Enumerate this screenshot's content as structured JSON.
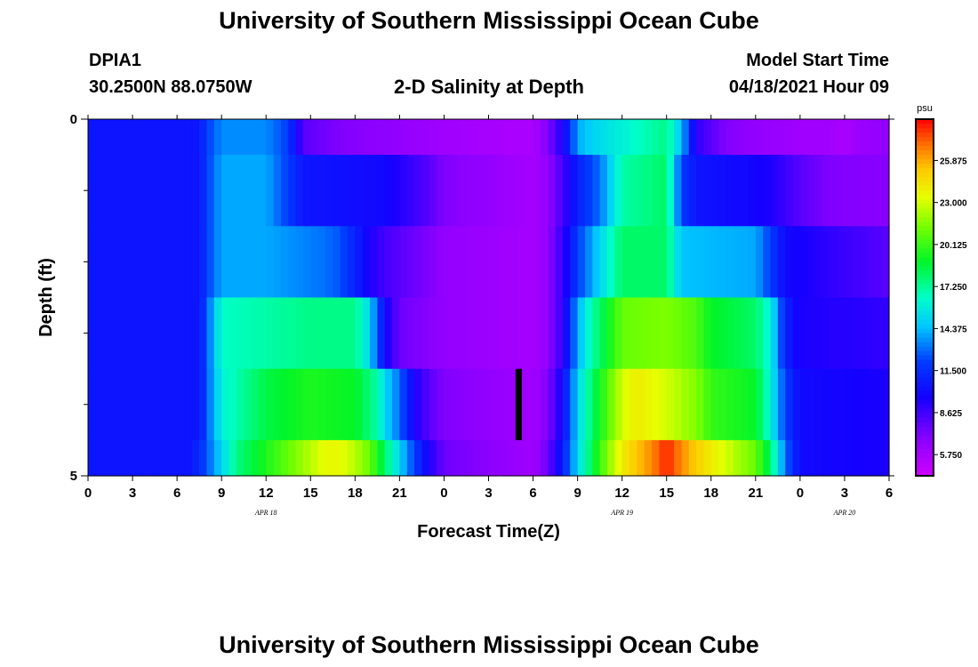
{
  "page": {
    "title_top": "University of Southern Mississippi Ocean Cube",
    "title_bottom": "University of Southern Mississippi Ocean Cube",
    "station_id": "DPIA1",
    "station_coords": "30.2500N  88.0750W",
    "plot_title": "2-D Salinity at Depth",
    "model_start_label": "Model Start Time",
    "model_start_value": "04/18/2021 Hour 09"
  },
  "colors": {
    "marker": "#000000"
  },
  "chart_data": {
    "type": "heatmap",
    "title": "2-D Salinity at Depth",
    "xlabel": "Forecast Time(Z)",
    "ylabel": "Depth (ft)",
    "colorbar_unit": "psu",
    "colorbar_ticks": [
      "25.875",
      "23.000",
      "20.125",
      "17.250",
      "14.375",
      "11.500",
      "8.625",
      "5.750"
    ],
    "color_range": [
      4.3,
      28.7
    ],
    "x_tick_labels": [
      "0",
      "3",
      "6",
      "9",
      "12",
      "15",
      "18",
      "21",
      "0",
      "3",
      "6",
      "9",
      "12",
      "15",
      "18",
      "21",
      "0",
      "3",
      "6"
    ],
    "x_range_hours": [
      0,
      54
    ],
    "date_labels": [
      {
        "text": "APR 18",
        "hour": 12
      },
      {
        "text": "APR 19",
        "hour": 36
      },
      {
        "text": "APR 20",
        "hour": 51
      }
    ],
    "y_tick_labels": [
      "0",
      "5"
    ],
    "y_range": [
      0,
      5
    ],
    "y_minor_ticks": [
      1,
      2,
      3,
      4
    ],
    "depth_bins": [
      0.5,
      1.5,
      2.5,
      3.5,
      4.5
    ],
    "grid": false,
    "marker_hour": 29,
    "marker_depth_range": [
      3.5,
      4.5
    ],
    "salinity_profiles": [
      {
        "depth": 0.5,
        "points": [
          [
            0,
            10.5
          ],
          [
            7.5,
            10.5
          ],
          [
            8,
            12
          ],
          [
            9,
            13.5
          ],
          [
            12,
            13.5
          ],
          [
            13.5,
            12
          ],
          [
            14.5,
            8
          ],
          [
            17,
            7
          ],
          [
            21,
            6.5
          ],
          [
            24,
            6
          ],
          [
            29,
            5.6
          ],
          [
            30,
            5.6
          ],
          [
            31,
            7
          ],
          [
            32,
            9.5
          ],
          [
            32.5,
            11.5
          ],
          [
            33,
            14
          ],
          [
            34,
            15
          ],
          [
            36,
            16
          ],
          [
            39,
            17.5
          ],
          [
            40,
            14.5
          ],
          [
            41,
            9
          ],
          [
            43,
            7
          ],
          [
            45,
            6.5
          ],
          [
            48,
            6
          ],
          [
            50,
            6
          ],
          [
            51,
            5.6
          ],
          [
            52,
            6.2
          ],
          [
            54,
            6.5
          ]
        ]
      },
      {
        "depth": 1.5,
        "points": [
          [
            0,
            10.5
          ],
          [
            7.5,
            10.5
          ],
          [
            8,
            12
          ],
          [
            9,
            14
          ],
          [
            12,
            14
          ],
          [
            13.5,
            12
          ],
          [
            14.5,
            10.5
          ],
          [
            20,
            10
          ],
          [
            23,
            8
          ],
          [
            24,
            7
          ],
          [
            30,
            5.8
          ],
          [
            31,
            6.5
          ],
          [
            32,
            8.5
          ],
          [
            33,
            11
          ],
          [
            34.5,
            13
          ],
          [
            36,
            17
          ],
          [
            39,
            18
          ],
          [
            40,
            12
          ],
          [
            41,
            10.5
          ],
          [
            44,
            10
          ],
          [
            46,
            9.5
          ],
          [
            48,
            8
          ],
          [
            50,
            7
          ],
          [
            54,
            6.8
          ]
        ]
      },
      {
        "depth": 2.5,
        "points": [
          [
            0,
            10.5
          ],
          [
            7.5,
            10.5
          ],
          [
            8,
            12
          ],
          [
            9,
            14
          ],
          [
            12,
            14
          ],
          [
            14,
            13.5
          ],
          [
            16,
            13
          ],
          [
            17,
            12.5
          ],
          [
            18,
            11
          ],
          [
            19,
            9.5
          ],
          [
            20,
            8.5
          ],
          [
            22,
            7.5
          ],
          [
            24,
            6.5
          ],
          [
            30,
            5.8
          ],
          [
            31,
            6.5
          ],
          [
            32,
            9
          ],
          [
            33,
            12
          ],
          [
            35,
            16
          ],
          [
            36,
            18
          ],
          [
            39,
            18
          ],
          [
            39.5,
            16
          ],
          [
            40,
            14.5
          ],
          [
            45,
            14
          ],
          [
            46,
            12
          ],
          [
            47,
            10
          ],
          [
            50,
            9
          ],
          [
            54,
            8
          ]
        ]
      },
      {
        "depth": 3.5,
        "points": [
          [
            0,
            10.5
          ],
          [
            7.5,
            10.5
          ],
          [
            8,
            12.5
          ],
          [
            9,
            16.5
          ],
          [
            12,
            17
          ],
          [
            15,
            17.5
          ],
          [
            18,
            17.5
          ],
          [
            19,
            15
          ],
          [
            20,
            10
          ],
          [
            21,
            7.5
          ],
          [
            24,
            6.5
          ],
          [
            30,
            5.8
          ],
          [
            31,
            6.5
          ],
          [
            32,
            9
          ],
          [
            33,
            14
          ],
          [
            34,
            17
          ],
          [
            35,
            19
          ],
          [
            36,
            21
          ],
          [
            39,
            21.5
          ],
          [
            41,
            20.5
          ],
          [
            42,
            19
          ],
          [
            45,
            18
          ],
          [
            46,
            16
          ],
          [
            47,
            11
          ],
          [
            48,
            9.5
          ],
          [
            54,
            9
          ]
        ]
      },
      {
        "depth": 4.5,
        "points": [
          [
            0,
            10.5
          ],
          [
            7.5,
            10.5
          ],
          [
            8,
            12.5
          ],
          [
            9,
            16
          ],
          [
            12,
            18.5
          ],
          [
            15,
            19.5
          ],
          [
            18,
            19
          ],
          [
            19.5,
            17
          ],
          [
            20,
            15
          ],
          [
            21,
            13
          ],
          [
            22,
            9.5
          ],
          [
            23,
            8
          ],
          [
            24,
            7
          ],
          [
            30,
            6
          ],
          [
            31,
            7
          ],
          [
            32,
            10
          ],
          [
            33,
            15
          ],
          [
            34,
            18
          ],
          [
            35,
            20.5
          ],
          [
            36,
            23
          ],
          [
            37,
            24
          ],
          [
            39,
            23
          ],
          [
            41,
            21.5
          ],
          [
            42,
            20
          ],
          [
            45,
            19
          ],
          [
            46,
            16
          ],
          [
            47,
            12
          ],
          [
            48,
            10
          ],
          [
            54,
            9.5
          ]
        ]
      },
      {
        "depth": 5.0,
        "points": [
          [
            0,
            10.5
          ],
          [
            7,
            10.5
          ],
          [
            8,
            12.5
          ],
          [
            9,
            15
          ],
          [
            10,
            17.5
          ],
          [
            12,
            19.5
          ],
          [
            14,
            21.5
          ],
          [
            15,
            22.5
          ],
          [
            16,
            23.5
          ],
          [
            17,
            23.5
          ],
          [
            18,
            22.5
          ],
          [
            19,
            21
          ],
          [
            20,
            18
          ],
          [
            21,
            15
          ],
          [
            22,
            12
          ],
          [
            23,
            9.5
          ],
          [
            24,
            7.5
          ],
          [
            30,
            6
          ],
          [
            31,
            7.5
          ],
          [
            32,
            11
          ],
          [
            33,
            15
          ],
          [
            34,
            18.5
          ],
          [
            35,
            21.5
          ],
          [
            36,
            24
          ],
          [
            38,
            26.5
          ],
          [
            39,
            28.2
          ],
          [
            40,
            26.5
          ],
          [
            41,
            25
          ],
          [
            43,
            23
          ],
          [
            45,
            21
          ],
          [
            46,
            18
          ],
          [
            47,
            13
          ],
          [
            48,
            10
          ],
          [
            54,
            9.5
          ]
        ]
      }
    ]
  }
}
